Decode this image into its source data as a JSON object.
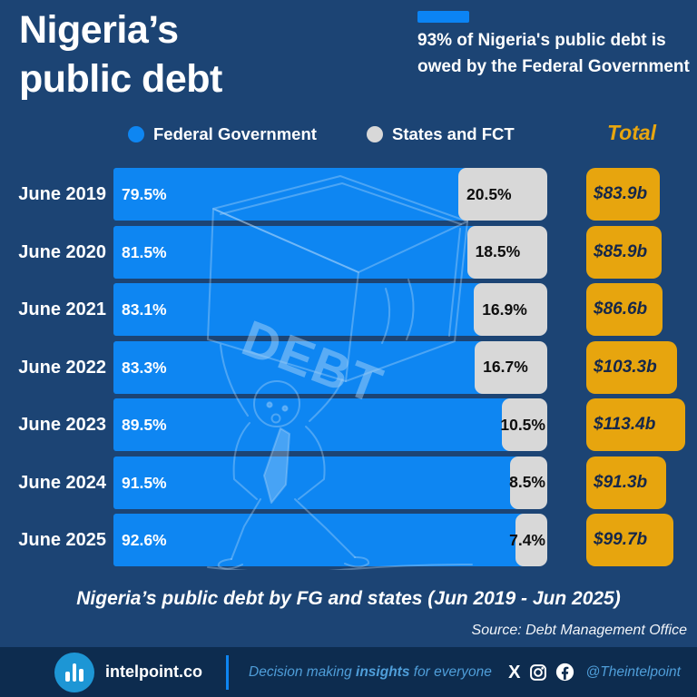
{
  "header": {
    "title_line1": "Nigeria’s",
    "title_line2": "public debt",
    "headline": "93% of Nigeria's public debt is owed by the Federal Government"
  },
  "legend": {
    "items": [
      {
        "label": "Federal Government",
        "color": "#0e86f2"
      },
      {
        "label": "States and FCT",
        "color": "#d8d8d8"
      }
    ],
    "total_label": "Total"
  },
  "chart_data": {
    "type": "bar",
    "stacked": true,
    "orientation": "horizontal",
    "categories": [
      "June 2019",
      "June 2020",
      "June 2021",
      "June 2022",
      "June 2023",
      "June 2024",
      "June 2025"
    ],
    "series": [
      {
        "name": "Federal Government",
        "unit": "%",
        "color": "#0e86f2",
        "values": [
          79.5,
          81.5,
          83.1,
          83.3,
          89.5,
          91.5,
          92.6
        ]
      },
      {
        "name": "States and FCT",
        "unit": "%",
        "color": "#d8d8d8",
        "values": [
          20.5,
          18.5,
          16.9,
          16.7,
          10.5,
          8.5,
          7.4
        ]
      }
    ],
    "totals": {
      "labels": [
        "$83.9b",
        "$85.9b",
        "$86.6b",
        "$103.3b",
        "$113.4b",
        "$91.3b",
        "$99.7b"
      ],
      "values": [
        83.9,
        85.9,
        86.6,
        103.3,
        113.4,
        91.3,
        99.7
      ],
      "color": "#e7a50e"
    },
    "xlim": [
      0,
      100
    ],
    "title": "Nigeria’s public debt by FG and states (Jun 2019 - Jun 2025)",
    "legend_position": "top",
    "grid": false,
    "watermark_text": "DEBT"
  },
  "caption": "Nigeria’s public debt by FG and states (Jun 2019 - Jun 2025)",
  "source": "Source: Debt Management Office",
  "footer": {
    "brand": "intelpoint.co",
    "tagline_pre": "Decision making ",
    "tagline_bold": "insights",
    "tagline_post": " for everyone",
    "social_handle": "@Theintelpoint",
    "x_glyph": "X"
  },
  "colors": {
    "background": "#1c4474",
    "footer_background": "#0d2c4f",
    "bar_blue": "#0e86f2",
    "bar_gray": "#d8d8d8",
    "accent_gold": "#e7a50e",
    "light_blue_text": "#4f9ed9"
  }
}
